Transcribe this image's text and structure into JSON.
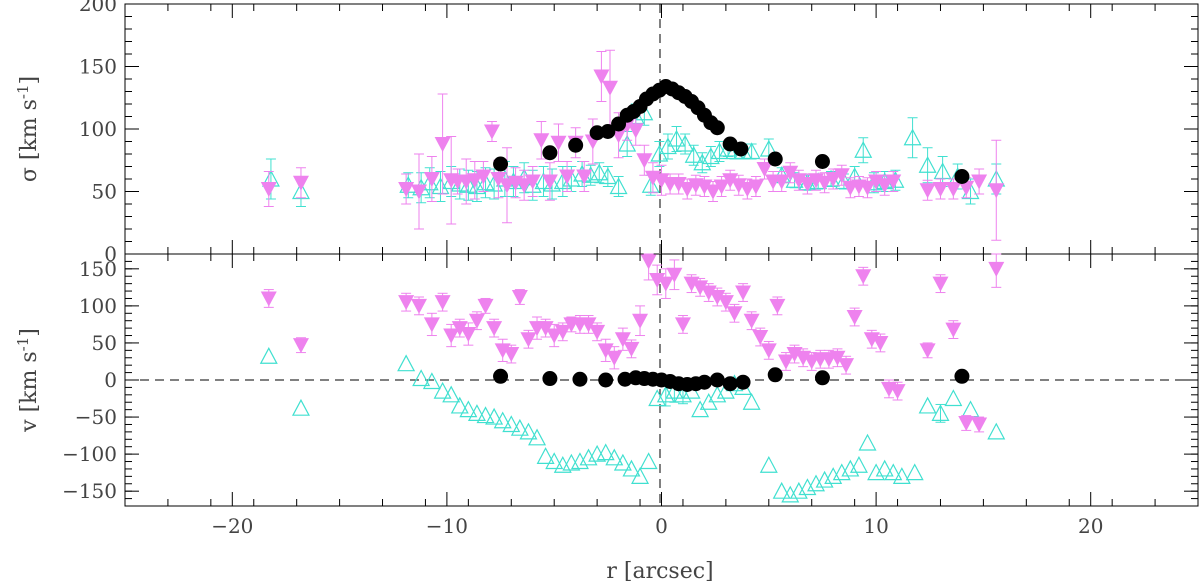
{
  "colors": {
    "magenta": "#ee82ee",
    "cyan": "#40e0d0",
    "black": "#000000"
  },
  "chart_data": [
    {
      "type": "scatter",
      "panel": "top",
      "ylabel": "σ [km s",
      "ylabel_sup": "-1",
      "ylabel_tail": "]",
      "xlim": [
        -25,
        25
      ],
      "ylim": [
        0,
        200
      ],
      "yticks": [
        0,
        50,
        100,
        150,
        200
      ],
      "ytick_labels": [
        "0",
        "50",
        "100",
        "150",
        "200"
      ],
      "xticks": [
        -20,
        -10,
        0,
        10,
        20
      ],
      "series": [
        {
          "name": "filled-circles",
          "marker": "circle",
          "color": "#000000",
          "x": [
            -7.5,
            -5.2,
            -4.0,
            -3.0,
            -2.5,
            -2.0,
            -1.6,
            -1.3,
            -1.0,
            -0.7,
            -0.4,
            -0.1,
            0.2,
            0.5,
            0.8,
            1.1,
            1.4,
            1.7,
            2.0,
            2.3,
            2.6,
            3.2,
            3.7,
            5.3,
            7.5,
            14.0
          ],
          "y": [
            72,
            81,
            87,
            97,
            98,
            104,
            111,
            114,
            118,
            124,
            128,
            131,
            134,
            132,
            129,
            126,
            122,
            117,
            111,
            105,
            101,
            88,
            84,
            76,
            74,
            62
          ],
          "err": [
            0,
            0,
            0,
            0,
            0,
            0,
            0,
            0,
            0,
            0,
            0,
            0,
            0,
            0,
            0,
            0,
            0,
            0,
            0,
            0,
            0,
            0,
            0,
            0,
            0,
            0
          ]
        },
        {
          "name": "open-triangles",
          "marker": "triangle-up-open",
          "color": "#40e0d0",
          "x": [
            -18.2,
            -16.8,
            -11.8,
            -11.2,
            -10.8,
            -10.3,
            -9.8,
            -9.4,
            -9.0,
            -8.6,
            -8.2,
            -7.8,
            -7.3,
            -6.9,
            -6.4,
            -6.0,
            -5.5,
            -5.1,
            -4.6,
            -4.2,
            -3.7,
            -3.3,
            -2.9,
            -2.5,
            -2.0,
            -1.6,
            -1.2,
            -0.8,
            -0.5,
            -0.1,
            0.3,
            0.7,
            1.1,
            1.5,
            1.9,
            2.3,
            2.7,
            3.1,
            3.4,
            3.8,
            4.2,
            5.0,
            5.6,
            6.2,
            6.8,
            7.3,
            7.9,
            8.5,
            9.0,
            9.4,
            9.9,
            10.4,
            10.9,
            11.7,
            12.4,
            13.1,
            13.8,
            14.4,
            15.6
          ],
          "y": [
            60,
            50,
            55,
            53,
            57,
            54,
            58,
            56,
            55,
            54,
            57,
            56,
            60,
            58,
            61,
            55,
            58,
            56,
            58,
            60,
            64,
            63,
            65,
            62,
            54,
            88,
            110,
            113,
            55,
            80,
            86,
            92,
            88,
            79,
            73,
            78,
            82,
            84,
            82,
            82,
            82,
            84,
            63,
            59,
            57,
            58,
            60,
            58,
            62,
            83,
            57,
            58,
            59,
            93,
            71,
            66,
            62,
            50,
            60
          ],
          "err": [
            16,
            12,
            10,
            12,
            12,
            12,
            12,
            12,
            12,
            12,
            12,
            12,
            14,
            12,
            12,
            12,
            12,
            12,
            12,
            10,
            10,
            8,
            8,
            8,
            8,
            10,
            10,
            10,
            8,
            10,
            10,
            10,
            8,
            8,
            8,
            8,
            8,
            6,
            6,
            6,
            6,
            8,
            6,
            6,
            6,
            6,
            6,
            6,
            8,
            10,
            8,
            8,
            8,
            16,
            14,
            12,
            10,
            10,
            12
          ]
        },
        {
          "name": "filled-down-triangles",
          "marker": "triangle-down",
          "color": "#ee82ee",
          "x": [
            -18.3,
            -16.8,
            -11.9,
            -11.3,
            -10.7,
            -10.2,
            -9.8,
            -9.5,
            -9.1,
            -8.7,
            -8.3,
            -7.9,
            -7.6,
            -7.2,
            -6.8,
            -6.4,
            -6.0,
            -5.6,
            -5.2,
            -4.8,
            -4.4,
            -4.0,
            -3.6,
            -3.2,
            -2.8,
            -2.4,
            -2.0,
            -1.6,
            -1.2,
            -0.8,
            -0.4,
            0.0,
            0.4,
            0.8,
            1.2,
            1.6,
            2.0,
            2.4,
            2.8,
            3.2,
            3.6,
            4.0,
            4.4,
            4.8,
            5.2,
            5.6,
            6.0,
            6.4,
            6.8,
            7.2,
            7.6,
            8.0,
            8.4,
            8.8,
            9.2,
            9.6,
            10.0,
            10.4,
            10.8,
            12.4,
            13.0,
            13.6,
            14.2,
            14.8,
            15.6
          ],
          "y": [
            52,
            57,
            52,
            50,
            60,
            88,
            59,
            58,
            58,
            59,
            62,
            98,
            60,
            55,
            57,
            55,
            58,
            91,
            58,
            89,
            62,
            89,
            62,
            90,
            142,
            133,
            95,
            103,
            99,
            75,
            61,
            59,
            56,
            56,
            52,
            55,
            54,
            50,
            54,
            59,
            55,
            52,
            54,
            68,
            58,
            58,
            65,
            59,
            56,
            59,
            57,
            60,
            63,
            53,
            54,
            53,
            58,
            55,
            58,
            51,
            52,
            52,
            53,
            58,
            51
          ],
          "err": [
            14,
            12,
            12,
            30,
            18,
            40,
            35,
            10,
            18,
            15,
            12,
            8,
            15,
            30,
            12,
            12,
            12,
            15,
            15,
            15,
            12,
            12,
            12,
            18,
            20,
            30,
            18,
            12,
            12,
            12,
            12,
            12,
            8,
            8,
            8,
            8,
            8,
            8,
            8,
            8,
            8,
            8,
            8,
            8,
            8,
            8,
            8,
            8,
            8,
            8,
            8,
            8,
            8,
            8,
            8,
            8,
            8,
            8,
            8,
            8,
            8,
            8,
            8,
            10,
            40
          ]
        }
      ]
    },
    {
      "type": "scatter",
      "panel": "bottom",
      "xlabel": "r [arcsec]",
      "ylabel": "v [km s",
      "ylabel_sup": "-1",
      "ylabel_tail": "]",
      "xlim": [
        -25,
        25
      ],
      "ylim": [
        -170,
        170
      ],
      "yticks": [
        -150,
        -100,
        -50,
        0,
        50,
        100,
        150
      ],
      "ytick_labels": [
        "−150",
        "−100",
        "−50",
        "0",
        "50",
        "100",
        "150"
      ],
      "xticks": [
        -20,
        -10,
        0,
        10,
        20
      ],
      "xtick_labels": [
        "−20",
        "−10",
        "0",
        "10",
        "20"
      ],
      "series": [
        {
          "name": "filled-circles",
          "marker": "circle",
          "color": "#000000",
          "x": [
            -7.5,
            -5.2,
            -3.8,
            -2.6,
            -1.7,
            -1.2,
            -0.8,
            -0.4,
            0.0,
            0.4,
            0.8,
            1.2,
            1.6,
            2.0,
            2.6,
            3.2,
            3.8,
            5.3,
            7.5,
            14.0
          ],
          "y": [
            5,
            2,
            1,
            0,
            1,
            3,
            2,
            1,
            0,
            -2,
            -5,
            -6,
            -5,
            -3,
            0,
            -5,
            -3,
            7,
            3,
            5
          ],
          "err": [
            0,
            0,
            0,
            0,
            0,
            0,
            0,
            0,
            0,
            0,
            0,
            0,
            0,
            0,
            0,
            0,
            0,
            0,
            0,
            0
          ]
        },
        {
          "name": "open-triangles",
          "marker": "triangle-up-open",
          "color": "#40e0d0",
          "x": [
            -18.3,
            -16.8,
            -11.9,
            -11.2,
            -10.7,
            -10.2,
            -9.8,
            -9.4,
            -9.0,
            -8.6,
            -8.2,
            -7.8,
            -7.4,
            -7.0,
            -6.6,
            -6.2,
            -5.8,
            -5.4,
            -5.0,
            -4.6,
            -4.2,
            -3.8,
            -3.4,
            -3.0,
            -2.6,
            -2.2,
            -1.8,
            -1.4,
            -1.0,
            -0.6,
            -0.2,
            0.2,
            0.6,
            1.0,
            1.4,
            1.8,
            2.2,
            2.6,
            3.0,
            3.4,
            3.8,
            4.2,
            5.0,
            5.6,
            6.0,
            6.4,
            6.8,
            7.2,
            7.6,
            8.0,
            8.4,
            8.8,
            9.2,
            9.6,
            10.0,
            10.4,
            10.8,
            11.2,
            11.8,
            12.4,
            13.0,
            13.6,
            14.4,
            15.6
          ],
          "y": [
            32,
            -38,
            22,
            2,
            -2,
            -15,
            -20,
            -35,
            -40,
            -45,
            -48,
            -50,
            -55,
            -60,
            -65,
            -70,
            -78,
            -103,
            -110,
            -115,
            -112,
            -110,
            -105,
            -100,
            -98,
            -105,
            -112,
            -120,
            -130,
            -110,
            -25,
            -20,
            -15,
            -20,
            -15,
            -40,
            -30,
            -20,
            -15,
            -5,
            -10,
            -30,
            -115,
            -150,
            -155,
            -150,
            -145,
            -140,
            -135,
            -130,
            -125,
            -120,
            -115,
            -85,
            -125,
            -120,
            -125,
            -130,
            -125,
            -35,
            -45,
            -25,
            -40,
            -70
          ],
          "err": [
            0,
            0,
            0,
            0,
            0,
            0,
            0,
            0,
            0,
            0,
            0,
            0,
            0,
            0,
            0,
            0,
            0,
            0,
            0,
            0,
            0,
            0,
            0,
            0,
            0,
            0,
            0,
            0,
            0,
            0,
            0,
            15,
            15,
            12,
            0,
            0,
            0,
            0,
            0,
            0,
            0,
            0,
            0,
            0,
            0,
            0,
            0,
            0,
            0,
            0,
            0,
            0,
            0,
            0,
            0,
            0,
            0,
            0,
            0,
            0,
            12,
            0,
            0,
            0
          ]
        },
        {
          "name": "filled-down-triangles",
          "marker": "triangle-down",
          "color": "#ee82ee",
          "x": [
            -18.3,
            -16.8,
            -11.9,
            -11.3,
            -10.7,
            -10.2,
            -9.8,
            -9.4,
            -9.0,
            -8.6,
            -8.2,
            -7.8,
            -7.4,
            -7.0,
            -6.6,
            -6.2,
            -5.8,
            -5.4,
            -5.0,
            -4.6,
            -4.2,
            -3.8,
            -3.4,
            -3.0,
            -2.6,
            -2.2,
            -1.8,
            -1.4,
            -1.0,
            -0.6,
            -0.2,
            0.2,
            0.6,
            1.0,
            1.4,
            1.8,
            2.2,
            2.6,
            3.0,
            3.4,
            3.8,
            4.2,
            4.6,
            5.0,
            5.4,
            5.8,
            6.2,
            6.6,
            7.0,
            7.4,
            7.8,
            8.2,
            8.6,
            9.0,
            9.4,
            9.8,
            10.2,
            10.6,
            11.0,
            12.4,
            13.0,
            13.6,
            14.2,
            14.8,
            15.6
          ],
          "y": [
            110,
            47,
            105,
            100,
            75,
            105,
            60,
            70,
            62,
            80,
            100,
            70,
            40,
            35,
            112,
            55,
            70,
            70,
            60,
            65,
            75,
            75,
            75,
            65,
            40,
            30,
            55,
            42,
            80,
            160,
            135,
            130,
            142,
            75,
            130,
            125,
            118,
            112,
            105,
            90,
            118,
            80,
            58,
            40,
            100,
            25,
            35,
            30,
            25,
            28,
            28,
            30,
            20,
            85,
            140,
            55,
            50,
            -12,
            -15,
            40,
            130,
            68,
            -58,
            -60,
            150
          ],
          "err": [
            12,
            10,
            12,
            12,
            15,
            12,
            15,
            12,
            15,
            12,
            10,
            12,
            15,
            12,
            10,
            12,
            15,
            12,
            15,
            12,
            10,
            12,
            12,
            12,
            15,
            15,
            15,
            12,
            20,
            25,
            20,
            20,
            20,
            12,
            12,
            12,
            12,
            12,
            12,
            12,
            12,
            12,
            12,
            12,
            12,
            12,
            12,
            12,
            12,
            12,
            12,
            12,
            12,
            12,
            12,
            12,
            12,
            12,
            12,
            10,
            12,
            12,
            10,
            10,
            25
          ]
        }
      ]
    }
  ]
}
